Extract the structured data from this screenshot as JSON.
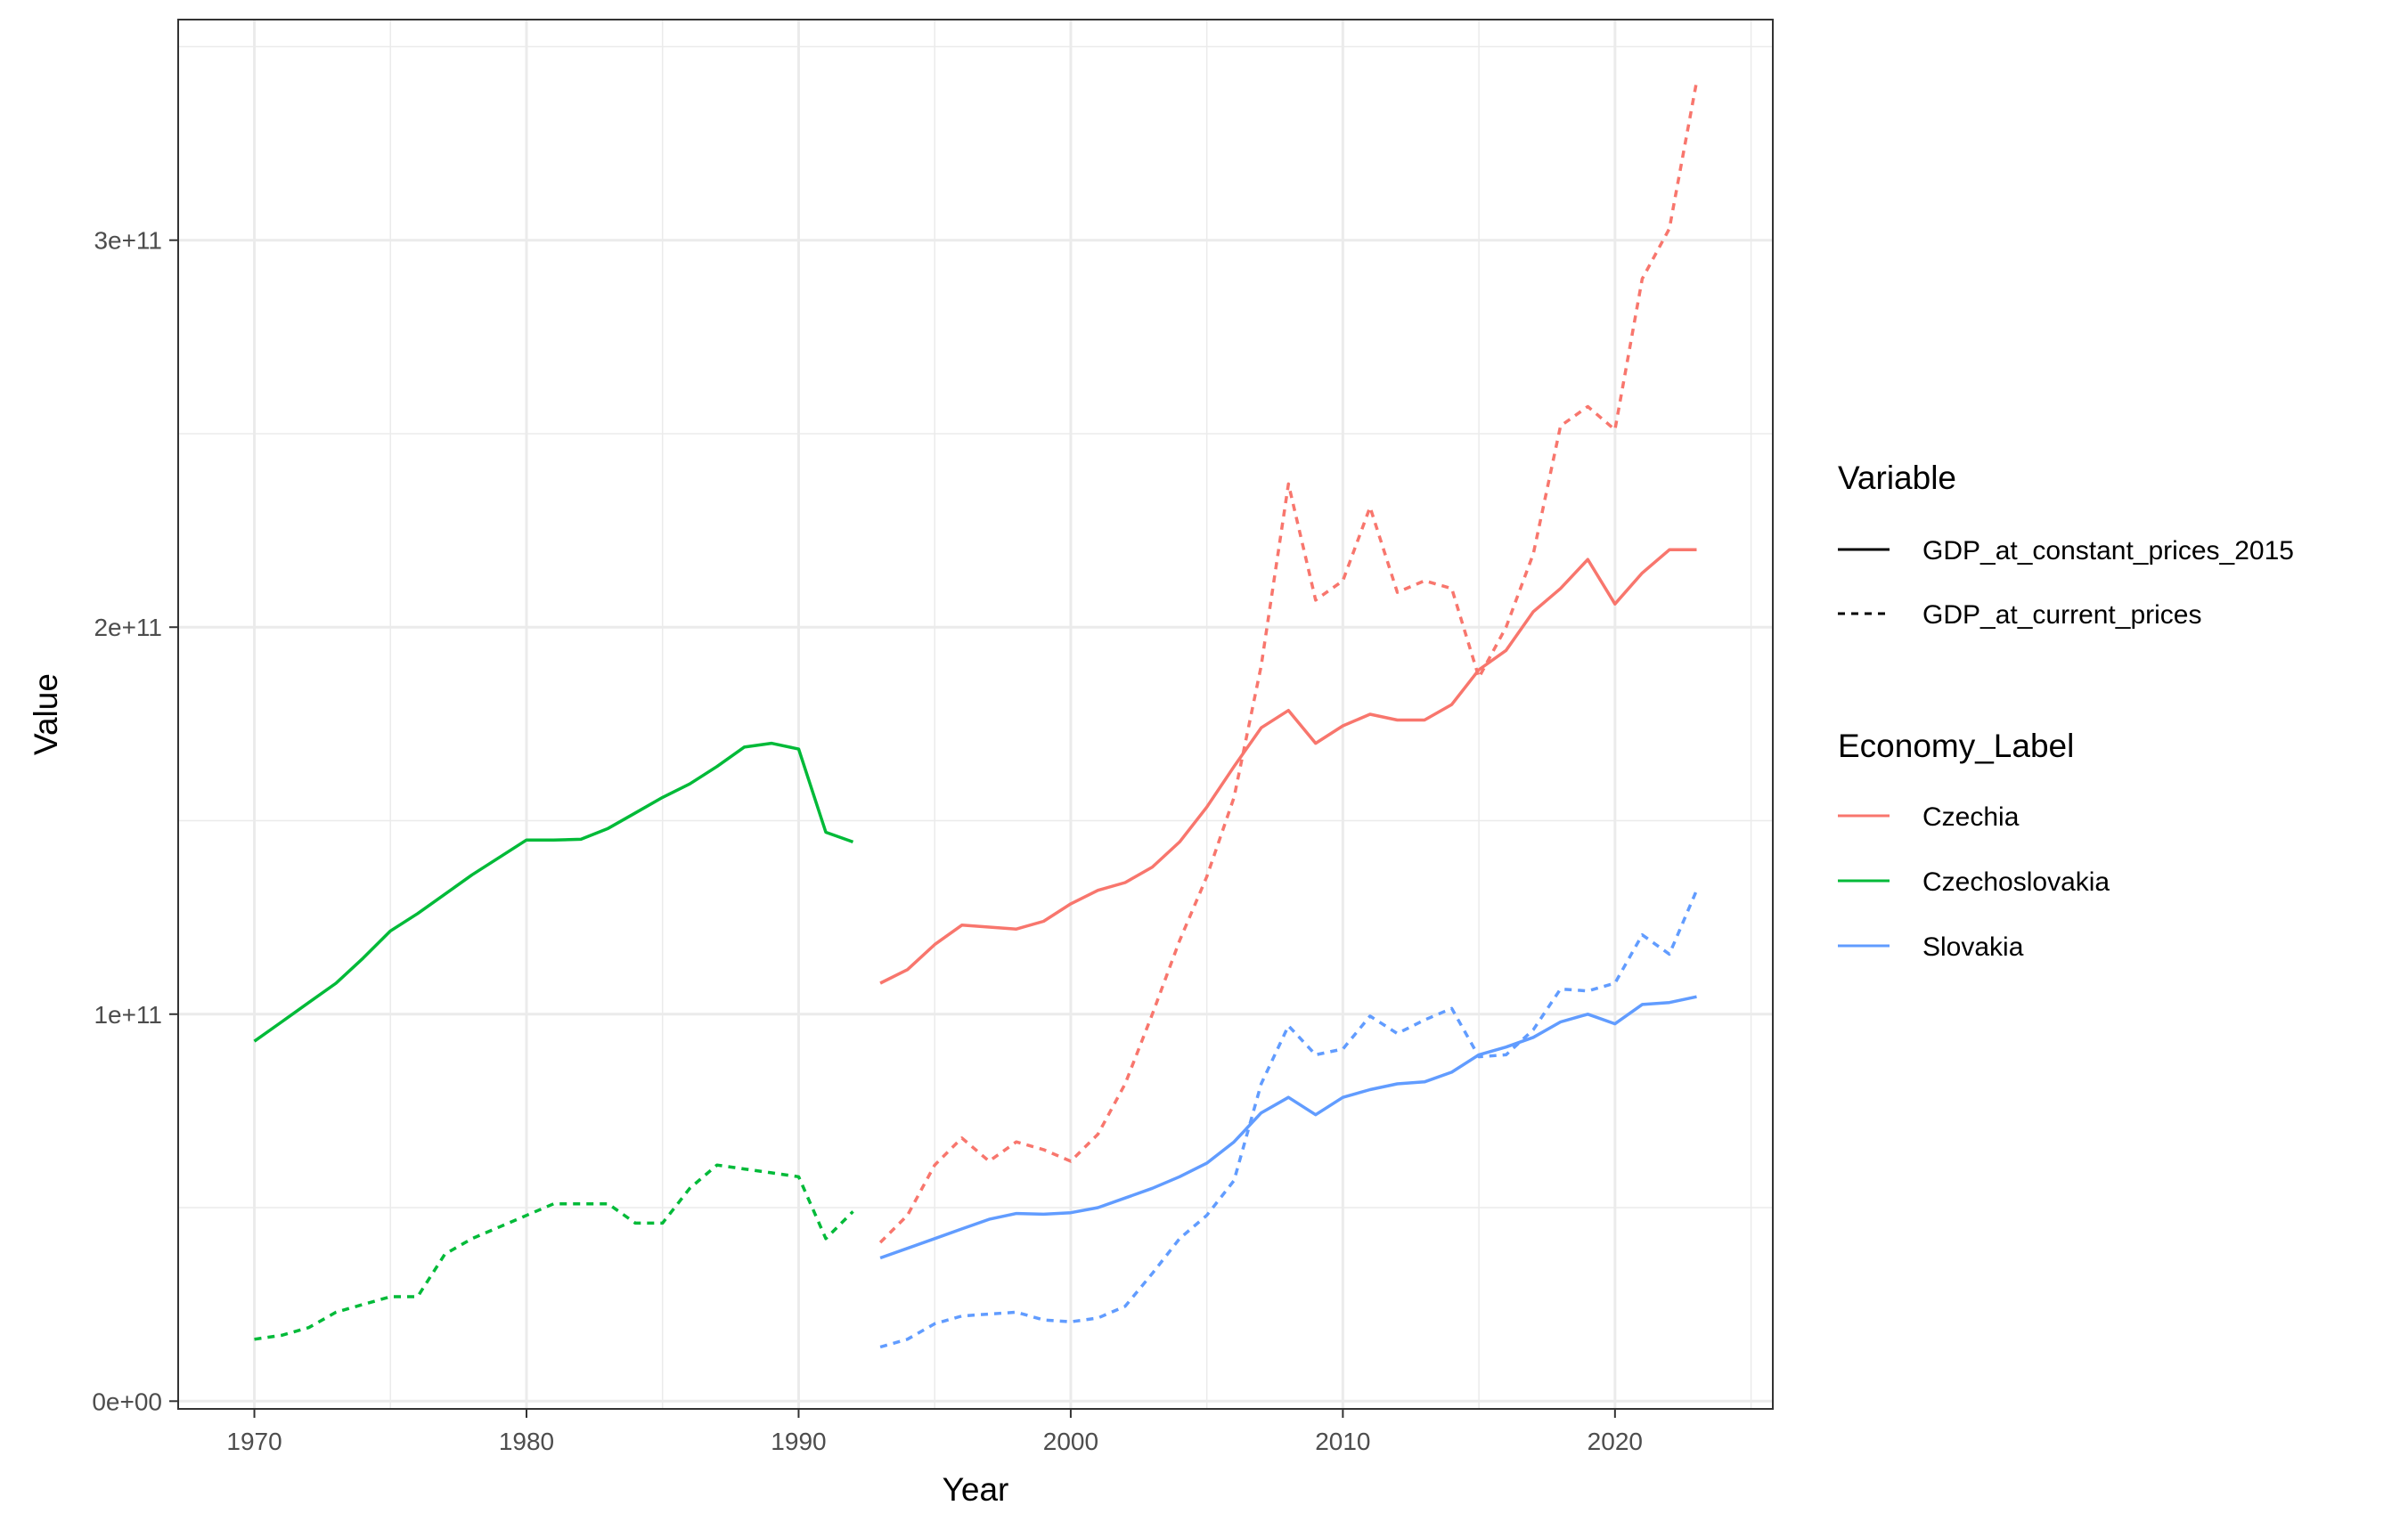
{
  "chart_data": {
    "type": "line",
    "title": "",
    "xlabel": "Year",
    "ylabel": "Value",
    "xlim": [
      1967.2,
      2025.8
    ],
    "ylim": [
      -2000000000.0,
      357000000000.0
    ],
    "x_ticks": [
      1970,
      1980,
      1990,
      2000,
      2010,
      2020
    ],
    "x_tick_labels": [
      "1970",
      "1980",
      "1990",
      "2000",
      "2010",
      "2020"
    ],
    "y_ticks": [
      0,
      100000000000,
      200000000000,
      300000000000
    ],
    "y_tick_labels": [
      "0e+00",
      "1e+11",
      "2e+11",
      "3e+11"
    ],
    "grid": true,
    "legend_placement": "right",
    "legend": {
      "linetype": {
        "title": "Variable",
        "entries": [
          {
            "label": "GDP_at_constant_prices_2015",
            "dash": "solid"
          },
          {
            "label": "GDP_at_current_prices",
            "dash": "dashed"
          }
        ]
      },
      "color": {
        "title": "Economy_Label",
        "entries": [
          {
            "label": "Czechia",
            "color": "#F8766D"
          },
          {
            "label": "Czechoslovakia",
            "color": "#00BA38"
          },
          {
            "label": "Slovakia",
            "color": "#619CFF"
          }
        ]
      }
    },
    "series": [
      {
        "economy": "Czechoslovakia",
        "variable": "GDP_at_constant_prices_2015",
        "color": "#00BA38",
        "dash": "solid",
        "x": [
          1970,
          1971,
          1972,
          1973,
          1974,
          1975,
          1976,
          1977,
          1978,
          1979,
          1980,
          1981,
          1982,
          1983,
          1984,
          1985,
          1986,
          1987,
          1988,
          1989,
          1990,
          1991,
          1992
        ],
        "y": [
          93000000000.0,
          98000000000.0,
          103000000000.0,
          108000000000.0,
          114500000000.0,
          121500000000.0,
          126000000000.0,
          131000000000.0,
          136000000000.0,
          140500000000.0,
          145000000000.0,
          145000000000.0,
          145200000000.0,
          148000000000.0,
          152000000000.0,
          156000000000.0,
          159500000000.0,
          164000000000.0,
          169000000000.0,
          170000000000.0,
          168500000000.0,
          147000000000.0,
          144500000000.0
        ]
      },
      {
        "economy": "Czechoslovakia",
        "variable": "GDP_at_current_prices",
        "color": "#00BA38",
        "dash": "dashed",
        "x": [
          1970,
          1971,
          1972,
          1973,
          1974,
          1975,
          1976,
          1977,
          1978,
          1979,
          1980,
          1981,
          1982,
          1983,
          1984,
          1985,
          1986,
          1987,
          1988,
          1989,
          1990,
          1991,
          1992
        ],
        "y": [
          16000000000.0,
          17000000000.0,
          19000000000.0,
          23000000000.0,
          25000000000.0,
          27000000000.0,
          27000000000.0,
          38000000000.0,
          42000000000.0,
          45000000000.0,
          48000000000.0,
          51000000000.0,
          51000000000.0,
          51000000000.0,
          46000000000.0,
          46000000000.0,
          55000000000.0,
          61000000000.0,
          60000000000.0,
          59000000000.0,
          58000000000.0,
          42000000000.0,
          49000000000.0
        ]
      },
      {
        "economy": "Czechia",
        "variable": "GDP_at_constant_prices_2015",
        "color": "#F8766D",
        "dash": "solid",
        "x": [
          1993,
          1994,
          1995,
          1996,
          1997,
          1998,
          1999,
          2000,
          2001,
          2002,
          2003,
          2004,
          2005,
          2006,
          2007,
          2008,
          2009,
          2010,
          2011,
          2012,
          2013,
          2014,
          2015,
          2016,
          2017,
          2018,
          2019,
          2020,
          2021,
          2022,
          2023
        ],
        "y": [
          108000000000.0,
          111500000000.0,
          118000000000.0,
          123000000000.0,
          122500000000.0,
          122000000000.0,
          124000000000.0,
          128500000000.0,
          132000000000.0,
          134000000000.0,
          138000000000.0,
          144500000000.0,
          153500000000.0,
          164000000000.0,
          174000000000.0,
          178500000000.0,
          170000000000.0,
          174500000000.0,
          177500000000.0,
          176000000000.0,
          176000000000.0,
          180000000000.0,
          189000000000.0,
          194000000000.0,
          204000000000.0,
          210000000000.0,
          217500000000.0,
          206000000000.0,
          214000000000.0,
          220000000000.0,
          220000000000.0
        ]
      },
      {
        "economy": "Czechia",
        "variable": "GDP_at_current_prices",
        "color": "#F8766D",
        "dash": "dashed",
        "x": [
          1993,
          1994,
          1995,
          1996,
          1997,
          1998,
          1999,
          2000,
          2001,
          2002,
          2003,
          2004,
          2005,
          2006,
          2007,
          2008,
          2009,
          2010,
          2011,
          2012,
          2013,
          2014,
          2015,
          2016,
          2017,
          2018,
          2019,
          2020,
          2021,
          2022,
          2023
        ],
        "y": [
          41000000000.0,
          48000000000.0,
          61000000000.0,
          68000000000.0,
          62000000000.0,
          67000000000.0,
          65000000000.0,
          62000000000.0,
          69000000000.0,
          82000000000.0,
          100000000000.0,
          119000000000.0,
          135500000000.0,
          156000000000.0,
          190000000000.0,
          237000000000.0,
          207000000000.0,
          212000000000.0,
          231000000000.0,
          209000000000.0,
          212000000000.0,
          210000000000.0,
          187000000000.0,
          200000000000.0,
          219000000000.0,
          252000000000.0,
          257000000000.0,
          251000000000.0,
          290000000000.0,
          303000000000.0,
          341000000000.0
        ]
      },
      {
        "economy": "Slovakia",
        "variable": "GDP_at_constant_prices_2015",
        "color": "#619CFF",
        "dash": "solid",
        "x": [
          1993,
          1994,
          1995,
          1996,
          1997,
          1998,
          1999,
          2000,
          2001,
          2002,
          2003,
          2004,
          2005,
          2006,
          2007,
          2008,
          2009,
          2010,
          2011,
          2012,
          2013,
          2014,
          2015,
          2016,
          2017,
          2018,
          2019,
          2020,
          2021,
          2022,
          2023
        ],
        "y": [
          37000000000.0,
          39500000000.0,
          42000000000.0,
          44500000000.0,
          47000000000.0,
          48500000000.0,
          48300000000.0,
          48700000000.0,
          50000000000.0,
          52500000000.0,
          55000000000.0,
          58000000000.0,
          61500000000.0,
          67000000000.0,
          74500000000.0,
          78500000000.0,
          74000000000.0,
          78500000000.0,
          80500000000.0,
          82000000000.0,
          82500000000.0,
          85000000000.0,
          89500000000.0,
          91500000000.0,
          94000000000.0,
          98000000000.0,
          100000000000.0,
          97500000000.0,
          102500000000.0,
          103000000000.0,
          104500000000.0
        ]
      },
      {
        "economy": "Slovakia",
        "variable": "GDP_at_current_prices",
        "color": "#619CFF",
        "dash": "dashed",
        "x": [
          1993,
          1994,
          1995,
          1996,
          1997,
          1998,
          1999,
          2000,
          2001,
          2002,
          2003,
          2004,
          2005,
          2006,
          2007,
          2008,
          2009,
          2010,
          2011,
          2012,
          2013,
          2014,
          2015,
          2016,
          2017,
          2018,
          2019,
          2020,
          2021,
          2022,
          2023
        ],
        "y": [
          14000000000.0,
          16000000000.0,
          20000000000.0,
          22000000000.0,
          22500000000.0,
          23000000000.0,
          21000000000.0,
          20500000000.0,
          21500000000.0,
          24500000000.0,
          33000000000.0,
          42000000000.0,
          48000000000.0,
          57000000000.0,
          82000000000.0,
          97000000000.0,
          89500000000.0,
          91000000000.0,
          99500000000.0,
          95000000000.0,
          98500000000.0,
          101500000000.0,
          89000000000.0,
          89500000000.0,
          96000000000.0,
          106500000000.0,
          106000000000.0,
          108000000000.0,
          120500000000.0,
          115500000000.0,
          132000000000.0
        ]
      }
    ]
  }
}
